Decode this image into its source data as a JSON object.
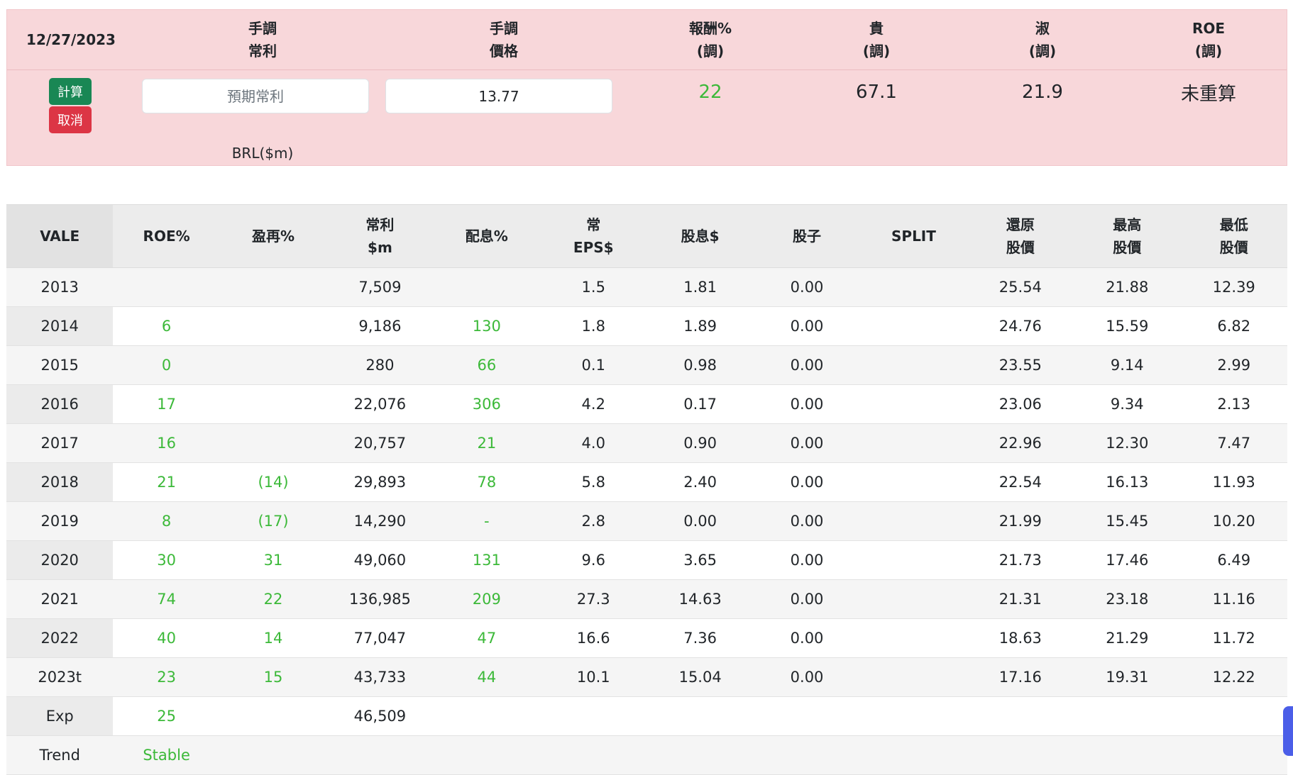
{
  "adjust_panel": {
    "date": "12/27/2023",
    "headers": [
      {
        "line1": "手調",
        "line2": "常利"
      },
      {
        "line1": "手調",
        "line2": "價格"
      },
      {
        "line1": "報酬%",
        "line2": "(調)"
      },
      {
        "line1": "貴",
        "line2": "(調)"
      },
      {
        "line1": "淑",
        "line2": "(調)"
      },
      {
        "line1": "ROE",
        "line2": "(調)"
      }
    ],
    "calc_button": "計算",
    "cancel_button": "取消",
    "profit_input": {
      "placeholder": "預期常利",
      "value": ""
    },
    "price_input": {
      "value": "13.77"
    },
    "unit_label": "BRL($m)",
    "return_pct": "22",
    "expensive": "67.1",
    "fair": "21.9",
    "roe_status": "未重算"
  },
  "table": {
    "headers": [
      {
        "line1": "VALE",
        "line2": ""
      },
      {
        "line1": "ROE%",
        "line2": ""
      },
      {
        "line1": "盈再%",
        "line2": ""
      },
      {
        "line1": "常利",
        "line2": "$m"
      },
      {
        "line1": "配息%",
        "line2": ""
      },
      {
        "line1": "常",
        "line2": "EPS$"
      },
      {
        "line1": "股息$",
        "line2": ""
      },
      {
        "line1": "股子",
        "line2": ""
      },
      {
        "line1": "SPLIT",
        "line2": ""
      },
      {
        "line1": "還原",
        "line2": "股價"
      },
      {
        "line1": "最高",
        "line2": "股價"
      },
      {
        "line1": "最低",
        "line2": "股價"
      }
    ],
    "rows": [
      {
        "year": "2013",
        "roe": "",
        "reinvest": "",
        "profit": "7,509",
        "payout": "",
        "eps": "1.5",
        "dividend": "1.81",
        "stock_div": "0.00",
        "split": "",
        "adj_price": "25.54",
        "high": "21.88",
        "low": "12.39"
      },
      {
        "year": "2014",
        "roe": "6",
        "reinvest": "",
        "profit": "9,186",
        "payout": "130",
        "eps": "1.8",
        "dividend": "1.89",
        "stock_div": "0.00",
        "split": "",
        "adj_price": "24.76",
        "high": "15.59",
        "low": "6.82"
      },
      {
        "year": "2015",
        "roe": "0",
        "reinvest": "",
        "profit": "280",
        "payout": "66",
        "eps": "0.1",
        "dividend": "0.98",
        "stock_div": "0.00",
        "split": "",
        "adj_price": "23.55",
        "high": "9.14",
        "low": "2.99"
      },
      {
        "year": "2016",
        "roe": "17",
        "reinvest": "",
        "profit": "22,076",
        "payout": "306",
        "eps": "4.2",
        "dividend": "0.17",
        "stock_div": "0.00",
        "split": "",
        "adj_price": "23.06",
        "high": "9.34",
        "low": "2.13"
      },
      {
        "year": "2017",
        "roe": "16",
        "reinvest": "",
        "profit": "20,757",
        "payout": "21",
        "eps": "4.0",
        "dividend": "0.90",
        "stock_div": "0.00",
        "split": "",
        "adj_price": "22.96",
        "high": "12.30",
        "low": "7.47"
      },
      {
        "year": "2018",
        "roe": "21",
        "reinvest": "(14)",
        "profit": "29,893",
        "payout": "78",
        "eps": "5.8",
        "dividend": "2.40",
        "stock_div": "0.00",
        "split": "",
        "adj_price": "22.54",
        "high": "16.13",
        "low": "11.93"
      },
      {
        "year": "2019",
        "roe": "8",
        "reinvest": "(17)",
        "profit": "14,290",
        "payout": "-",
        "eps": "2.8",
        "dividend": "0.00",
        "stock_div": "0.00",
        "split": "",
        "adj_price": "21.99",
        "high": "15.45",
        "low": "10.20"
      },
      {
        "year": "2020",
        "roe": "30",
        "reinvest": "31",
        "profit": "49,060",
        "payout": "131",
        "eps": "9.6",
        "dividend": "3.65",
        "stock_div": "0.00",
        "split": "",
        "adj_price": "21.73",
        "high": "17.46",
        "low": "6.49"
      },
      {
        "year": "2021",
        "roe": "74",
        "reinvest": "22",
        "profit": "136,985",
        "payout": "209",
        "eps": "27.3",
        "dividend": "14.63",
        "stock_div": "0.00",
        "split": "",
        "adj_price": "21.31",
        "high": "23.18",
        "low": "11.16"
      },
      {
        "year": "2022",
        "roe": "40",
        "reinvest": "14",
        "profit": "77,047",
        "payout": "47",
        "eps": "16.6",
        "dividend": "7.36",
        "stock_div": "0.00",
        "split": "",
        "adj_price": "18.63",
        "high": "21.29",
        "low": "11.72"
      },
      {
        "year": "2023t",
        "roe": "23",
        "reinvest": "15",
        "profit": "43,733",
        "payout": "44",
        "eps": "10.1",
        "dividend": "15.04",
        "stock_div": "0.00",
        "split": "",
        "adj_price": "17.16",
        "high": "19.31",
        "low": "12.22"
      },
      {
        "year": "Exp",
        "roe": "25",
        "reinvest": "",
        "profit": "46,509",
        "payout": "",
        "eps": "",
        "dividend": "",
        "stock_div": "",
        "split": "",
        "adj_price": "",
        "high": "",
        "low": ""
      },
      {
        "year": "Trend",
        "roe": "Stable",
        "reinvest": "",
        "profit": "",
        "payout": "",
        "eps": "",
        "dividend": "",
        "stock_div": "",
        "split": "",
        "adj_price": "",
        "high": "",
        "low": ""
      }
    ],
    "green_columns": [
      "roe",
      "reinvest",
      "payout"
    ]
  },
  "colors": {
    "accent_green": "#3cb939",
    "calc_button": "#198754",
    "cancel_button": "#dc3545",
    "panel_bg": "#f8d7da"
  }
}
